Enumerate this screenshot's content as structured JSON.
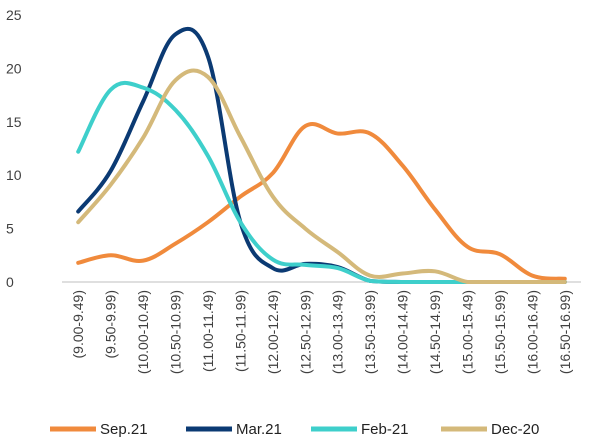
{
  "chart_data": {
    "type": "line",
    "title": "",
    "xlabel": "",
    "ylabel": "",
    "ylim": [
      0,
      25
    ],
    "yticks": [
      0,
      5,
      10,
      15,
      20,
      25
    ],
    "grid": false,
    "legend_position": "bottom",
    "categories": [
      "(9.00-9.49)",
      "(9.50-9.99)",
      "(10.00-10.49)",
      "(10.50-10.99)",
      "(11.00-11.49)",
      "(11.50-11.99)",
      "(12.00-12.49)",
      "(12.50-12.99)",
      "(13.00-13.49)",
      "(13.50-13.99)",
      "(14.00-14.49)",
      "(14.50-14.99)",
      "(15.00-15.49)",
      "(15.50-15.99)",
      "(16.00-16.49)",
      "(16.50-16.99)"
    ],
    "series": [
      {
        "name": "Sep.21",
        "color": "#F08A3C",
        "values": [
          1.8,
          2.5,
          2.0,
          3.6,
          5.6,
          8.0,
          10.2,
          14.6,
          13.9,
          13.9,
          10.9,
          6.8,
          3.3,
          2.6,
          0.6,
          0.3
        ]
      },
      {
        "name": "Mar.21",
        "color": "#0B3A73",
        "values": [
          6.6,
          10.4,
          16.9,
          23.2,
          21.1,
          5.6,
          1.3,
          1.7,
          1.4,
          0.1,
          0.0,
          0.0,
          0.0,
          0.0,
          0.0,
          0.0
        ]
      },
      {
        "name": "Feb-21",
        "color": "#3ECFCB",
        "values": [
          12.2,
          18.0,
          18.2,
          16.1,
          11.8,
          5.6,
          2.1,
          1.6,
          1.3,
          0.1,
          0.0,
          0.0,
          0.0,
          0.0,
          0.0,
          0.0
        ]
      },
      {
        "name": "Dec-20",
        "color": "#D4B97A",
        "values": [
          5.6,
          9.1,
          13.5,
          18.9,
          19.2,
          13.6,
          8.0,
          5.0,
          2.8,
          0.6,
          0.8,
          1.0,
          0.0,
          0.0,
          0.0,
          0.0
        ]
      }
    ]
  }
}
